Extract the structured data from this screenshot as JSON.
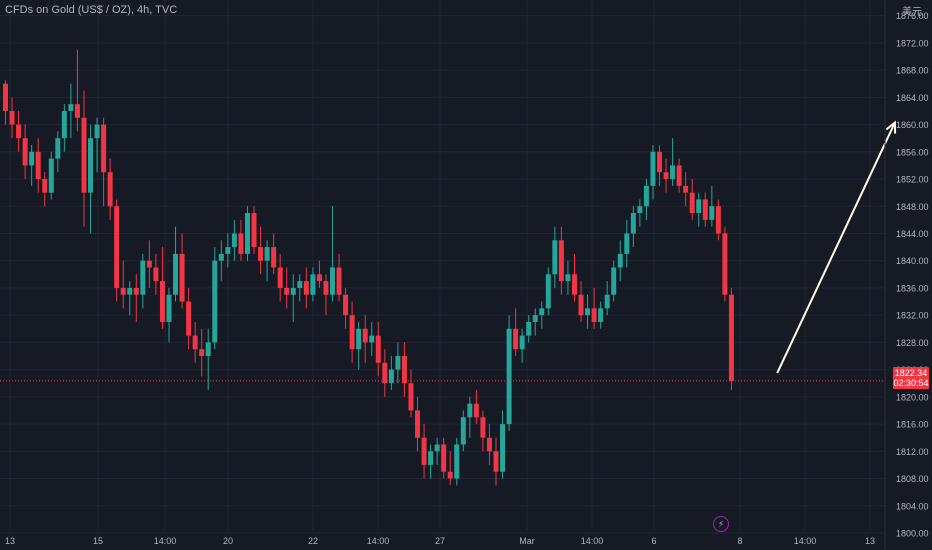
{
  "header": {
    "title": "CFDs on Gold (US$ / OZ), 4h, TVC",
    "currency": "美元"
  },
  "last_price": {
    "value": "1822.34",
    "countdown": "02:30:54"
  },
  "colors": {
    "background": "#161a25",
    "up": "#26a69a",
    "down": "#f23645",
    "grid": "#232632",
    "axis_text": "#b2b5be",
    "arrow": "#fffde0"
  },
  "icons": {
    "lightning": "lightning-icon"
  },
  "chart_data": {
    "type": "candlestick",
    "y_axis": {
      "ticks": [
        "1800.00",
        "1804.00",
        "1808.00",
        "1812.00",
        "1816.00",
        "1820.00",
        "1824.00",
        "1828.00",
        "1832.00",
        "1836.00",
        "1840.00",
        "1844.00",
        "1848.00",
        "1852.00",
        "1856.00",
        "1860.00",
        "1864.00",
        "1868.00",
        "1872.00",
        "1876.00"
      ],
      "range": [
        1797.5,
        1878.3
      ]
    },
    "x_axis": {
      "ticks": [
        "13",
        "15",
        "14:00",
        "20",
        "22",
        "14:00",
        "27",
        "Mar",
        "14:00",
        "6",
        "8",
        "14:00",
        "13"
      ]
    },
    "candles": [
      [
        1866,
        1866.5,
        1860,
        1862
      ],
      [
        1862,
        1864,
        1858,
        1860
      ],
      [
        1860,
        1862,
        1856,
        1858
      ],
      [
        1858,
        1860,
        1852,
        1854
      ],
      [
        1854,
        1857,
        1851,
        1856
      ],
      [
        1856,
        1858,
        1850,
        1852
      ],
      [
        1852,
        1853,
        1848,
        1850
      ],
      [
        1850,
        1856,
        1849,
        1855
      ],
      [
        1855,
        1859,
        1853,
        1858
      ],
      [
        1858,
        1863,
        1856,
        1862
      ],
      [
        1862,
        1866,
        1858,
        1863
      ],
      [
        1863,
        1871,
        1859,
        1861
      ],
      [
        1861,
        1865,
        1845,
        1850
      ],
      [
        1850,
        1860,
        1844,
        1858
      ],
      [
        1858,
        1861,
        1853,
        1860
      ],
      [
        1860,
        1861,
        1848,
        1853
      ],
      [
        1853,
        1855,
        1846,
        1848
      ],
      [
        1848,
        1849,
        1834,
        1836
      ],
      [
        1836,
        1840,
        1833,
        1835
      ],
      [
        1835,
        1837,
        1832,
        1836
      ],
      [
        1836,
        1838,
        1831,
        1835
      ],
      [
        1835,
        1841,
        1833,
        1840
      ],
      [
        1840,
        1843,
        1836,
        1839
      ],
      [
        1839,
        1841,
        1835,
        1837
      ],
      [
        1837,
        1842,
        1830,
        1831
      ],
      [
        1831,
        1836,
        1828,
        1835
      ],
      [
        1835,
        1845,
        1834,
        1841
      ],
      [
        1841,
        1844,
        1833,
        1834
      ],
      [
        1834,
        1836,
        1827,
        1829
      ],
      [
        1829,
        1831,
        1825,
        1827
      ],
      [
        1827,
        1830,
        1823,
        1826
      ],
      [
        1826,
        1830,
        1821,
        1828
      ],
      [
        1828,
        1842,
        1827,
        1840
      ],
      [
        1840,
        1843,
        1837,
        1841
      ],
      [
        1841,
        1844,
        1839,
        1842
      ],
      [
        1842,
        1846,
        1840,
        1844
      ],
      [
        1844,
        1846,
        1840,
        1841
      ],
      [
        1841,
        1848,
        1840,
        1847
      ],
      [
        1847,
        1848,
        1841,
        1842
      ],
      [
        1842,
        1845,
        1838,
        1840
      ],
      [
        1840,
        1843,
        1837,
        1842
      ],
      [
        1842,
        1844,
        1838,
        1839
      ],
      [
        1839,
        1841,
        1834,
        1836
      ],
      [
        1836,
        1839,
        1833,
        1835
      ],
      [
        1835,
        1838,
        1831,
        1836
      ],
      [
        1836,
        1838,
        1834,
        1837
      ],
      [
        1837,
        1839,
        1833,
        1835
      ],
      [
        1835,
        1839,
        1834,
        1838
      ],
      [
        1838,
        1840,
        1836,
        1837
      ],
      [
        1837,
        1838,
        1832,
        1835
      ],
      [
        1835,
        1848,
        1834,
        1839
      ],
      [
        1839,
        1841,
        1834,
        1835
      ],
      [
        1835,
        1836,
        1830,
        1832
      ],
      [
        1832,
        1834,
        1825,
        1827
      ],
      [
        1827,
        1831,
        1824,
        1830
      ],
      [
        1830,
        1832,
        1825,
        1828
      ],
      [
        1828,
        1831,
        1826,
        1829
      ],
      [
        1829,
        1831,
        1823,
        1825
      ],
      [
        1825,
        1827,
        1820,
        1822
      ],
      [
        1822,
        1826,
        1821,
        1824
      ],
      [
        1824,
        1828,
        1822,
        1826
      ],
      [
        1826,
        1828,
        1820,
        1822
      ],
      [
        1822,
        1824,
        1817,
        1818
      ],
      [
        1818,
        1820,
        1812,
        1814
      ],
      [
        1814,
        1816,
        1808,
        1810
      ],
      [
        1810,
        1813,
        1808,
        1812
      ],
      [
        1812,
        1814,
        1810,
        1813
      ],
      [
        1813,
        1814,
        1808,
        1809
      ],
      [
        1809,
        1812,
        1807,
        1808
      ],
      [
        1808,
        1814,
        1807,
        1813
      ],
      [
        1813,
        1818,
        1812,
        1817
      ],
      [
        1817,
        1820,
        1814,
        1819
      ],
      [
        1819,
        1821,
        1816,
        1817
      ],
      [
        1817,
        1818,
        1812,
        1814
      ],
      [
        1814,
        1816,
        1810,
        1812
      ],
      [
        1812,
        1814,
        1807,
        1809
      ],
      [
        1809,
        1818,
        1808,
        1816
      ],
      [
        1816,
        1832,
        1815,
        1830
      ],
      [
        1830,
        1833,
        1826,
        1827
      ],
      [
        1827,
        1830,
        1825,
        1829
      ],
      [
        1829,
        1832,
        1828,
        1831
      ],
      [
        1831,
        1833,
        1829,
        1832
      ],
      [
        1832,
        1834,
        1830,
        1833
      ],
      [
        1833,
        1839,
        1832,
        1838
      ],
      [
        1838,
        1845,
        1836,
        1843
      ],
      [
        1843,
        1845,
        1835,
        1837
      ],
      [
        1837,
        1840,
        1835,
        1838
      ],
      [
        1838,
        1841,
        1834,
        1835
      ],
      [
        1835,
        1837,
        1831,
        1832
      ],
      [
        1832,
        1835,
        1830,
        1833
      ],
      [
        1833,
        1836,
        1830,
        1831
      ],
      [
        1831,
        1834,
        1830,
        1833
      ],
      [
        1833,
        1837,
        1832,
        1835
      ],
      [
        1835,
        1840,
        1834,
        1839
      ],
      [
        1839,
        1843,
        1837,
        1841
      ],
      [
        1841,
        1846,
        1839,
        1844
      ],
      [
        1844,
        1848,
        1842,
        1847
      ],
      [
        1847,
        1849,
        1845,
        1848
      ],
      [
        1848,
        1852,
        1846,
        1851
      ],
      [
        1851,
        1857,
        1849,
        1856
      ],
      [
        1856,
        1857,
        1851,
        1853
      ],
      [
        1853,
        1855,
        1850,
        1852
      ],
      [
        1852,
        1858,
        1851,
        1854
      ],
      [
        1854,
        1855,
        1850,
        1851
      ],
      [
        1851,
        1853,
        1848,
        1850
      ],
      [
        1850,
        1852,
        1846,
        1847
      ],
      [
        1847,
        1850,
        1845,
        1849
      ],
      [
        1849,
        1850,
        1845,
        1846
      ],
      [
        1846,
        1851,
        1845,
        1848
      ],
      [
        1848,
        1849,
        1843,
        1844
      ],
      [
        1844,
        1845,
        1834,
        1835
      ],
      [
        1835,
        1836,
        1821,
        1822.34
      ]
    ],
    "annotations": [
      {
        "type": "arrow",
        "from": [
          118,
          1823.5
        ],
        "to": [
          136,
          1860.3
        ]
      }
    ]
  }
}
